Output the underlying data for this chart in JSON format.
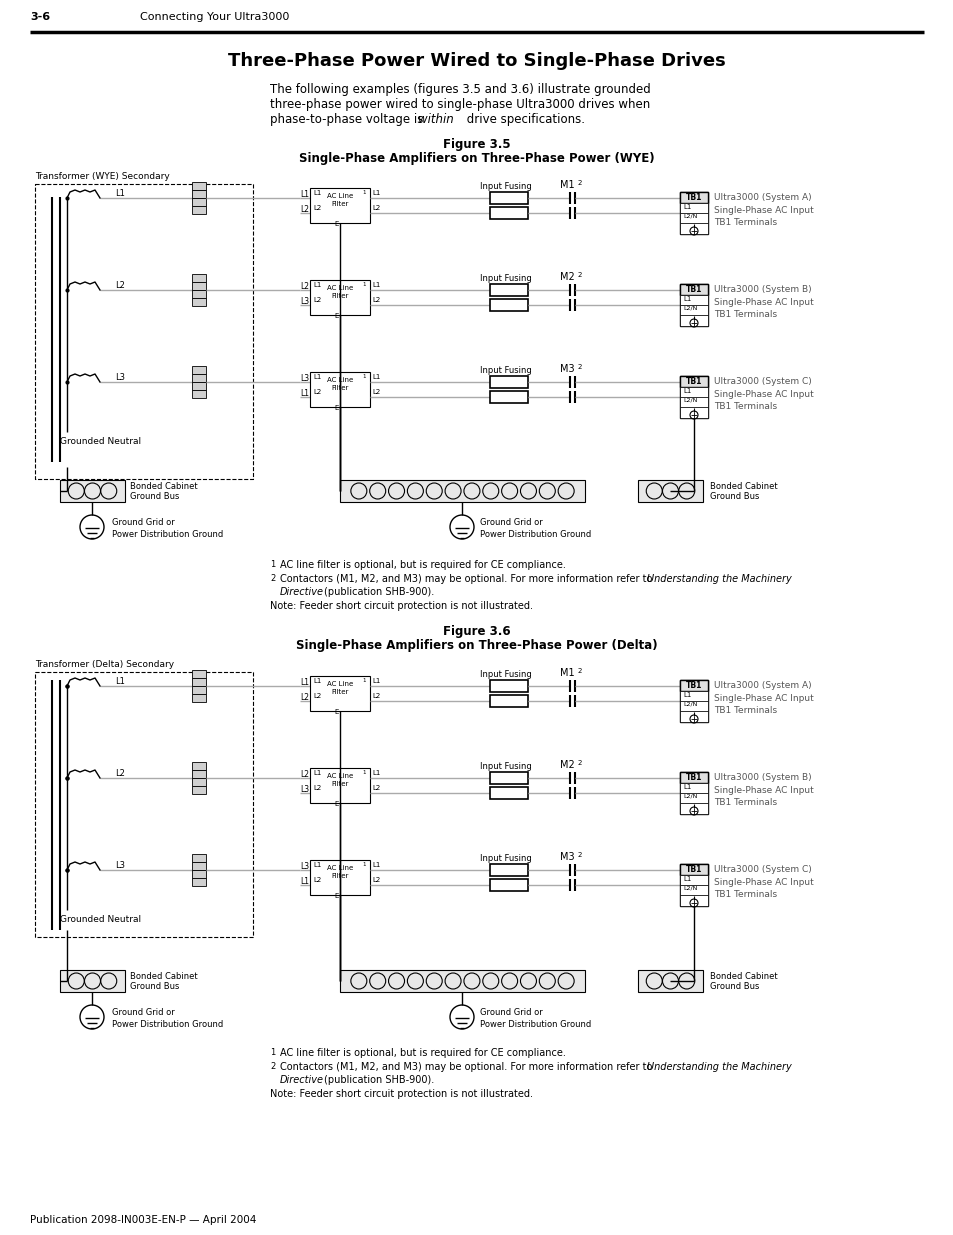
{
  "title": "Three-Phase Power Wired to Single-Phase Drives",
  "header_left": "3-6",
  "header_right": "Connecting Your Ultra3000",
  "footer": "Publication 2098-IN003E-EN-P — April 2004",
  "fig1_title": "Figure 3.5",
  "fig1_subtitle": "Single-Phase Amplifiers on Three-Phase Power (WYE)",
  "fig2_title": "Figure 3.6",
  "fig2_subtitle": "Single-Phase Amplifiers on Three-Phase Power (Delta)",
  "bg_color": "#ffffff",
  "line_color": "#000000",
  "gray": "#888888",
  "darkgray": "#555555"
}
